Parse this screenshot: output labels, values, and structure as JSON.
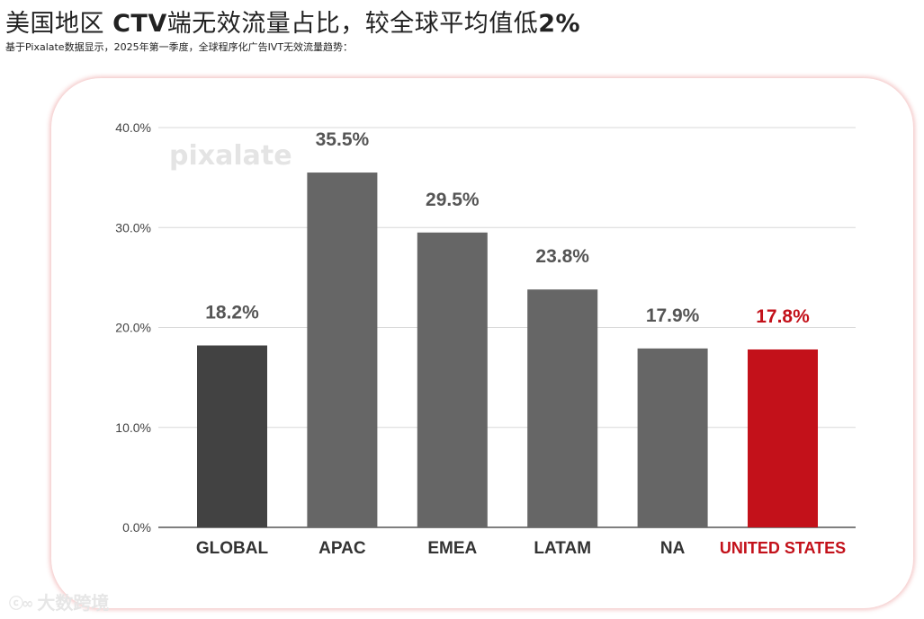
{
  "header": {
    "title_prefix": "美国地区 ",
    "title_bold_1": "CTV",
    "title_middle": "端无效流量占比，较全球平均值低",
    "title_bold_2": "2%",
    "subtitle": "基于Pixalate数据显示，2025年第一季度，全球程序化广告IVT无效流量趋势："
  },
  "watermark": "pixalate",
  "footer": {
    "logo_text": "大数跨境"
  },
  "colors": {
    "global_bar": "#424242",
    "region_bar": "#666666",
    "highlight": "#c3111a",
    "value_label": "#555555",
    "axis_text": "#444444",
    "grid": "#d9d9d9",
    "card_border": "#e26e6e"
  },
  "chart_data": {
    "type": "bar",
    "title": "",
    "xlabel": "",
    "ylabel": "",
    "categories": [
      "GLOBAL",
      "APAC",
      "EMEA",
      "LATAM",
      "NA",
      "UNITED STATES"
    ],
    "values": [
      18.2,
      35.5,
      29.5,
      23.8,
      17.9,
      17.8
    ],
    "value_labels": [
      "18.2%",
      "35.5%",
      "29.5%",
      "23.8%",
      "17.9%",
      "17.8%"
    ],
    "highlight_category": "UNITED STATES",
    "ylim": [
      0,
      40
    ],
    "yticks": [
      0,
      10,
      20,
      30,
      40
    ],
    "ytick_labels": [
      "0.0%",
      "10.0%",
      "20.0%",
      "30.0%",
      "40.0%"
    ],
    "grid": true,
    "legend": "none"
  }
}
